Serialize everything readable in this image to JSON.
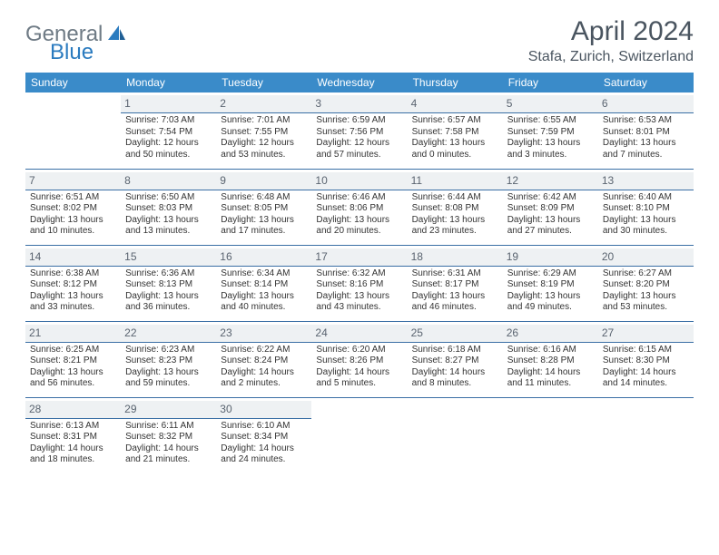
{
  "logo": {
    "text1": "General",
    "text2": "Blue"
  },
  "title": "April 2024",
  "location": "Stafa, Zurich, Switzerland",
  "weekdays": [
    "Sunday",
    "Monday",
    "Tuesday",
    "Wednesday",
    "Thursday",
    "Friday",
    "Saturday"
  ],
  "colors": {
    "header_bg": "#3a8bc9",
    "header_text": "#ffffff",
    "daynum_bg": "#eef1f3",
    "divider": "#3a6fa5",
    "logo_gray": "#6f7b85",
    "logo_blue": "#2b7bbf",
    "title_color": "#4a5560"
  },
  "typography": {
    "title_fontsize": 30,
    "location_fontsize": 16,
    "weekday_fontsize": 12,
    "daynum_fontsize": 12,
    "body_fontsize": 10
  },
  "grid": {
    "rows": 5,
    "cols": 7,
    "first_day_col": 1,
    "days_in_month": 30
  },
  "days": [
    {
      "n": 1,
      "sunrise": "7:03 AM",
      "sunset": "7:54 PM",
      "daylight": "12 hours and 50 minutes."
    },
    {
      "n": 2,
      "sunrise": "7:01 AM",
      "sunset": "7:55 PM",
      "daylight": "12 hours and 53 minutes."
    },
    {
      "n": 3,
      "sunrise": "6:59 AM",
      "sunset": "7:56 PM",
      "daylight": "12 hours and 57 minutes."
    },
    {
      "n": 4,
      "sunrise": "6:57 AM",
      "sunset": "7:58 PM",
      "daylight": "13 hours and 0 minutes."
    },
    {
      "n": 5,
      "sunrise": "6:55 AM",
      "sunset": "7:59 PM",
      "daylight": "13 hours and 3 minutes."
    },
    {
      "n": 6,
      "sunrise": "6:53 AM",
      "sunset": "8:01 PM",
      "daylight": "13 hours and 7 minutes."
    },
    {
      "n": 7,
      "sunrise": "6:51 AM",
      "sunset": "8:02 PM",
      "daylight": "13 hours and 10 minutes."
    },
    {
      "n": 8,
      "sunrise": "6:50 AM",
      "sunset": "8:03 PM",
      "daylight": "13 hours and 13 minutes."
    },
    {
      "n": 9,
      "sunrise": "6:48 AM",
      "sunset": "8:05 PM",
      "daylight": "13 hours and 17 minutes."
    },
    {
      "n": 10,
      "sunrise": "6:46 AM",
      "sunset": "8:06 PM",
      "daylight": "13 hours and 20 minutes."
    },
    {
      "n": 11,
      "sunrise": "6:44 AM",
      "sunset": "8:08 PM",
      "daylight": "13 hours and 23 minutes."
    },
    {
      "n": 12,
      "sunrise": "6:42 AM",
      "sunset": "8:09 PM",
      "daylight": "13 hours and 27 minutes."
    },
    {
      "n": 13,
      "sunrise": "6:40 AM",
      "sunset": "8:10 PM",
      "daylight": "13 hours and 30 minutes."
    },
    {
      "n": 14,
      "sunrise": "6:38 AM",
      "sunset": "8:12 PM",
      "daylight": "13 hours and 33 minutes."
    },
    {
      "n": 15,
      "sunrise": "6:36 AM",
      "sunset": "8:13 PM",
      "daylight": "13 hours and 36 minutes."
    },
    {
      "n": 16,
      "sunrise": "6:34 AM",
      "sunset": "8:14 PM",
      "daylight": "13 hours and 40 minutes."
    },
    {
      "n": 17,
      "sunrise": "6:32 AM",
      "sunset": "8:16 PM",
      "daylight": "13 hours and 43 minutes."
    },
    {
      "n": 18,
      "sunrise": "6:31 AM",
      "sunset": "8:17 PM",
      "daylight": "13 hours and 46 minutes."
    },
    {
      "n": 19,
      "sunrise": "6:29 AM",
      "sunset": "8:19 PM",
      "daylight": "13 hours and 49 minutes."
    },
    {
      "n": 20,
      "sunrise": "6:27 AM",
      "sunset": "8:20 PM",
      "daylight": "13 hours and 53 minutes."
    },
    {
      "n": 21,
      "sunrise": "6:25 AM",
      "sunset": "8:21 PM",
      "daylight": "13 hours and 56 minutes."
    },
    {
      "n": 22,
      "sunrise": "6:23 AM",
      "sunset": "8:23 PM",
      "daylight": "13 hours and 59 minutes."
    },
    {
      "n": 23,
      "sunrise": "6:22 AM",
      "sunset": "8:24 PM",
      "daylight": "14 hours and 2 minutes."
    },
    {
      "n": 24,
      "sunrise": "6:20 AM",
      "sunset": "8:26 PM",
      "daylight": "14 hours and 5 minutes."
    },
    {
      "n": 25,
      "sunrise": "6:18 AM",
      "sunset": "8:27 PM",
      "daylight": "14 hours and 8 minutes."
    },
    {
      "n": 26,
      "sunrise": "6:16 AM",
      "sunset": "8:28 PM",
      "daylight": "14 hours and 11 minutes."
    },
    {
      "n": 27,
      "sunrise": "6:15 AM",
      "sunset": "8:30 PM",
      "daylight": "14 hours and 14 minutes."
    },
    {
      "n": 28,
      "sunrise": "6:13 AM",
      "sunset": "8:31 PM",
      "daylight": "14 hours and 18 minutes."
    },
    {
      "n": 29,
      "sunrise": "6:11 AM",
      "sunset": "8:32 PM",
      "daylight": "14 hours and 21 minutes."
    },
    {
      "n": 30,
      "sunrise": "6:10 AM",
      "sunset": "8:34 PM",
      "daylight": "14 hours and 24 minutes."
    }
  ],
  "labels": {
    "sunrise": "Sunrise: ",
    "sunset": "Sunset: ",
    "daylight": "Daylight: "
  }
}
